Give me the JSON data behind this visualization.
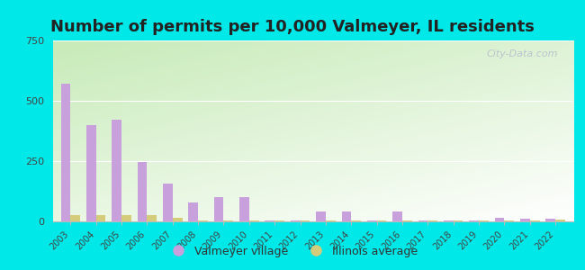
{
  "title": "Number of permits per 10,000 Valmeyer, IL residents",
  "years": [
    2003,
    2004,
    2005,
    2006,
    2007,
    2008,
    2009,
    2010,
    2011,
    2012,
    2013,
    2014,
    2015,
    2016,
    2017,
    2018,
    2019,
    2020,
    2021,
    2022
  ],
  "valmeyer": [
    570,
    400,
    420,
    245,
    155,
    80,
    100,
    100,
    5,
    2,
    40,
    40,
    2,
    40,
    2,
    2,
    2,
    15,
    10,
    10
  ],
  "illinois": [
    25,
    25,
    25,
    25,
    15,
    5,
    5,
    5,
    3,
    3,
    3,
    3,
    3,
    3,
    3,
    3,
    3,
    3,
    3,
    8
  ],
  "valmeyer_color": "#c8a0dc",
  "illinois_color": "#d4cc7a",
  "bar_width": 0.38,
  "ylim": [
    0,
    750
  ],
  "yticks": [
    0,
    250,
    500,
    750
  ],
  "outer_bg": "#00e8e8",
  "title_fontsize": 13,
  "title_color": "#222222",
  "watermark": "City-Data.com",
  "legend_valmeyer": "Valmeyer village",
  "legend_illinois": "Illinois average"
}
